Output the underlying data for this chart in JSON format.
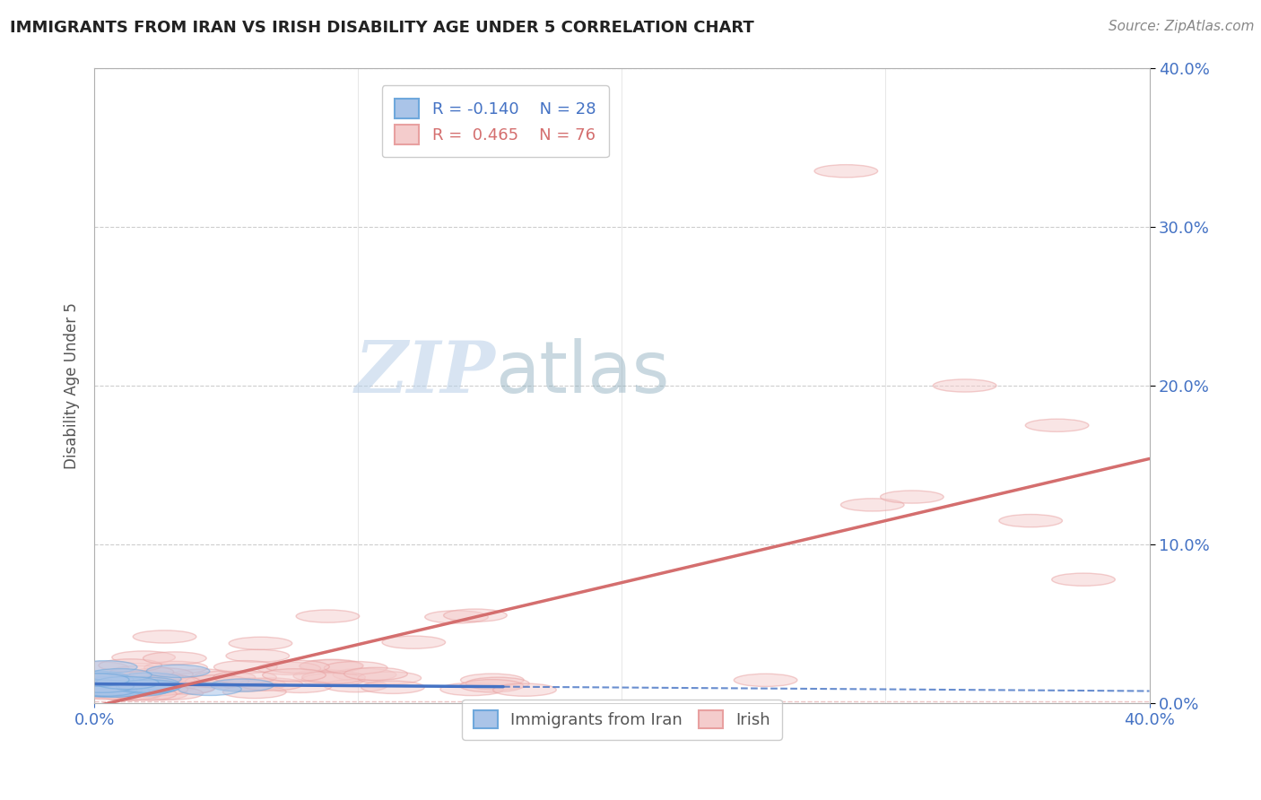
{
  "title": "IMMIGRANTS FROM IRAN VS IRISH DISABILITY AGE UNDER 5 CORRELATION CHART",
  "source": "Source: ZipAtlas.com",
  "ylabel": "Disability Age Under 5",
  "legend_iran_R": "R = -0.140",
  "legend_iran_N": "N = 28",
  "legend_irish_R": "R =  0.465",
  "legend_irish_N": "N = 76",
  "color_iran_fill": "#aac4e8",
  "color_iran_edge": "#6fa8dc",
  "color_iran_line": "#4472c4",
  "color_irish_fill": "#f4cccc",
  "color_irish_edge": "#e8a0a0",
  "color_irish_line": "#d46e6e",
  "background_color": "#ffffff",
  "grid_color": "#c8c8c8",
  "watermark_zip": "ZIP",
  "watermark_atlas": "atlas",
  "xlim": [
    0.0,
    0.4
  ],
  "ylim": [
    0.0,
    0.4
  ],
  "iran_n": 28,
  "irish_n": 76
}
